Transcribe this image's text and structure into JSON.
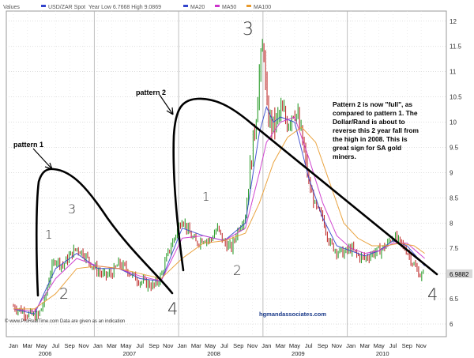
{
  "header": {
    "values_label": "Values",
    "series_label": "USD/ZAR Spot",
    "year_low_high": "Year Low 6.7668 High 9.0869",
    "ma20_label": "MA20",
    "ma50_label": "MA50",
    "ma100_label": "MA100"
  },
  "colors": {
    "price_up": "#2e9e2e",
    "price_down": "#c03030",
    "ma20": "#3344cc",
    "ma50": "#cc33cc",
    "ma100": "#e89a2c",
    "trendline": "#000000",
    "last_price_bg": "#d8d8d8"
  },
  "chart_data": {
    "type": "line",
    "title": "",
    "xlabel": "",
    "ylabel": "",
    "ylim": [
      5.75,
      12.2
    ],
    "yticks": [
      "6",
      "6.5",
      "7",
      "7.5",
      "8",
      "8.5",
      "9",
      "9.5",
      "10",
      "10.5",
      "11",
      "11.5",
      "12"
    ],
    "xticks": [
      "Jan",
      "Mar",
      "May",
      "Jul",
      "Sep",
      "Nov",
      "Jan",
      "Mar",
      "May",
      "Jul",
      "Sep",
      "Nov",
      "Jan",
      "Mar",
      "May",
      "Jul",
      "Sep",
      "Nov",
      "Jan",
      "Mar",
      "May",
      "Jul",
      "Sep",
      "Nov",
      "Jan",
      "Mar",
      "May",
      "Jul",
      "Sep",
      "Nov"
    ],
    "year_labels": [
      "2006",
      "2007",
      "2008",
      "2009",
      "2010"
    ],
    "last_price": "6.9882",
    "series": [
      {
        "name": "USD/ZAR Spot",
        "x": [
          0,
          2,
          3.5,
          4.5,
          5.2,
          6,
          7,
          8,
          9,
          10,
          11,
          12,
          13,
          14,
          15,
          16,
          17,
          18,
          19,
          20,
          21,
          22,
          23,
          24,
          25,
          26,
          27,
          28,
          29,
          30,
          31,
          32,
          33,
          34,
          34.5,
          35,
          35.6,
          36,
          37,
          38,
          39,
          40,
          41,
          42,
          43,
          44,
          45,
          46,
          47,
          48,
          49,
          50,
          51,
          52,
          53,
          54,
          55,
          56,
          57,
          58,
          58.5
        ],
        "values": [
          6.35,
          6.2,
          6.15,
          6.5,
          7.0,
          7.3,
          7.15,
          7.35,
          7.5,
          7.4,
          7.2,
          7.05,
          6.95,
          7.0,
          7.2,
          7.1,
          6.95,
          6.85,
          6.8,
          6.75,
          6.95,
          7.4,
          7.75,
          8.1,
          7.8,
          7.6,
          7.7,
          7.65,
          7.9,
          7.6,
          7.5,
          7.9,
          8.15,
          9.5,
          10.1,
          11.0,
          11.6,
          10.2,
          9.9,
          10.2,
          10.0,
          10.3,
          9.7,
          8.8,
          8.3,
          8.1,
          7.6,
          7.45,
          7.4,
          7.5,
          7.35,
          7.3,
          7.4,
          7.45,
          7.55,
          7.75,
          7.6,
          7.45,
          7.15,
          6.95,
          6.99
        ]
      },
      {
        "name": "MA20",
        "x": [
          0,
          3,
          6,
          9,
          12,
          15,
          18,
          21,
          24,
          27,
          30,
          33,
          35,
          36,
          37,
          38,
          40,
          42,
          44,
          46,
          48,
          50,
          52,
          54,
          56,
          58.5
        ],
        "values": [
          6.3,
          6.2,
          7.1,
          7.4,
          7.1,
          7.1,
          6.9,
          6.85,
          7.9,
          7.75,
          7.65,
          8.0,
          9.8,
          10.3,
          10.0,
          10.1,
          10.0,
          8.9,
          8.1,
          7.55,
          7.45,
          7.35,
          7.45,
          7.65,
          7.55,
          7.15
        ]
      },
      {
        "name": "MA50",
        "x": [
          0,
          3,
          6,
          9,
          12,
          15,
          18,
          21,
          24,
          27,
          30,
          33,
          35,
          36,
          38,
          40,
          42,
          44,
          46,
          48,
          50,
          52,
          54,
          56,
          58.5
        ],
        "values": [
          6.3,
          6.25,
          6.9,
          7.3,
          7.15,
          7.1,
          6.95,
          6.85,
          7.7,
          7.75,
          7.65,
          7.9,
          9.0,
          9.6,
          10.0,
          10.1,
          9.3,
          8.4,
          7.75,
          7.5,
          7.4,
          7.45,
          7.6,
          7.6,
          7.3
        ]
      },
      {
        "name": "MA100",
        "x": [
          0,
          3,
          6,
          9,
          12,
          15,
          18,
          21,
          24,
          27,
          30,
          33,
          35,
          37,
          39,
          41,
          43,
          45,
          47,
          49,
          51,
          53,
          55,
          57,
          58.5
        ],
        "values": [
          6.3,
          6.3,
          6.6,
          7.1,
          7.15,
          7.1,
          7.0,
          6.9,
          7.3,
          7.6,
          7.65,
          7.8,
          8.4,
          9.2,
          9.7,
          9.9,
          9.6,
          8.8,
          8.0,
          7.7,
          7.55,
          7.55,
          7.6,
          7.55,
          7.4
        ]
      }
    ],
    "annotations": {
      "pattern_1": "pattern 1",
      "pattern_2": "pattern 2",
      "wave_labels": [
        "1",
        "2",
        "3",
        "4",
        "1",
        "2",
        "3",
        "4"
      ],
      "note": [
        "Pattern 2 is now \"full\", as",
        "compared to pattern 1. The",
        "Dollar/Rand is about to",
        "reverse this 2 year fall from",
        "the high in 2008. This is",
        "great sign for SA gold",
        "miners."
      ]
    }
  },
  "footer": {
    "credit": "© www.ProRealTime.com Data are given as an indication",
    "website": "hgmandassociates.com"
  }
}
